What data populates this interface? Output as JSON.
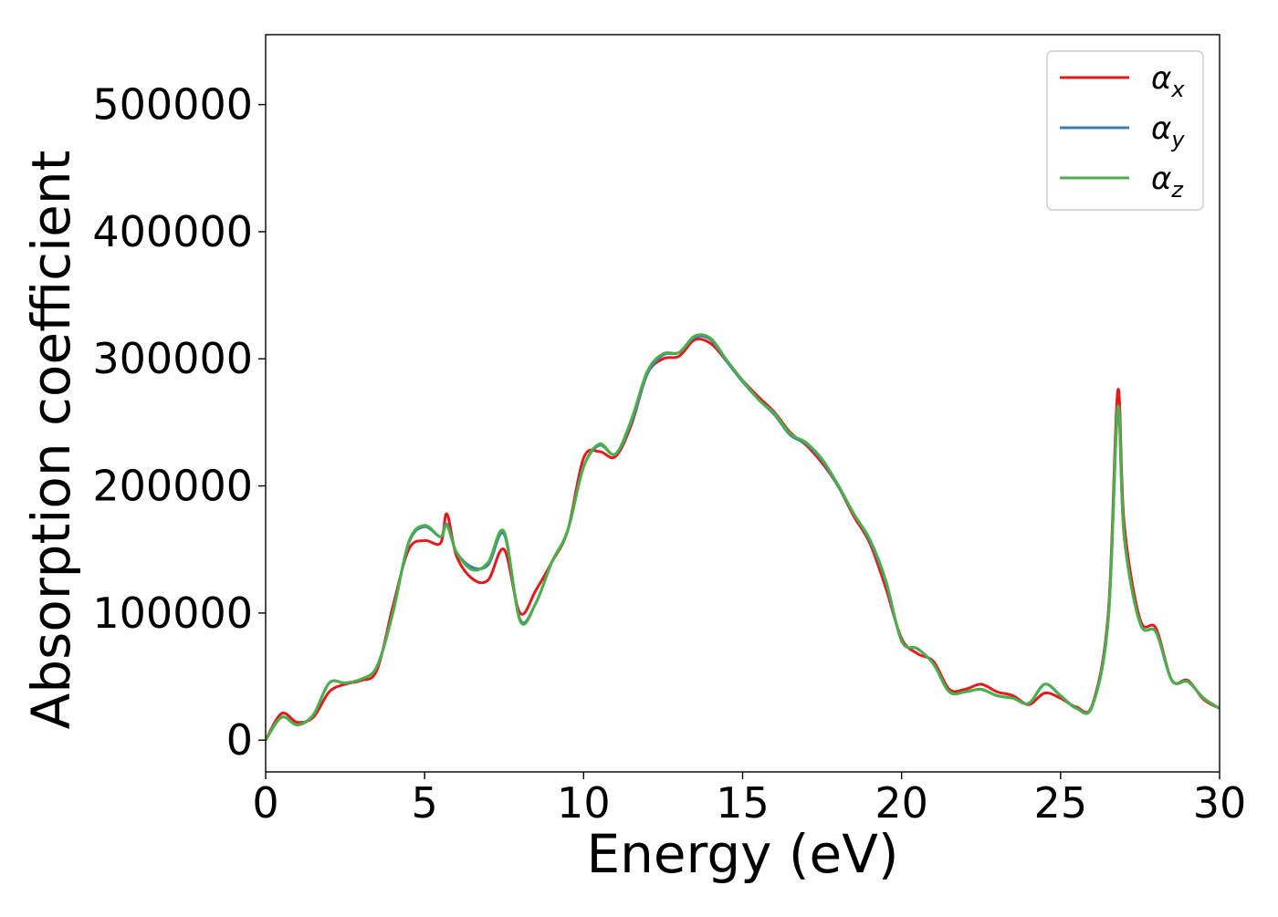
{
  "chart_data": {
    "type": "line",
    "title": "",
    "xlabel": "Energy (eV)",
    "ylabel": "Absorption coefficient",
    "xlim": [
      0,
      30
    ],
    "ylim": [
      -25000,
      555000
    ],
    "xticks": [
      0,
      5,
      10,
      15,
      20,
      25,
      30
    ],
    "xtick_labels": [
      "0",
      "5",
      "10",
      "15",
      "20",
      "25",
      "30"
    ],
    "yticks": [
      0,
      100000,
      200000,
      300000,
      400000,
      500000
    ],
    "ytick_labels": [
      "0",
      "100000",
      "200000",
      "300000",
      "400000",
      "500000"
    ],
    "grid": false,
    "legend_position": "top-right",
    "x": [
      0,
      0.5,
      1.0,
      1.5,
      2.0,
      2.5,
      3.0,
      3.5,
      4.0,
      4.5,
      5.0,
      5.5,
      5.7,
      6.0,
      6.5,
      7.0,
      7.5,
      8.0,
      8.5,
      9.0,
      9.5,
      10.0,
      10.5,
      11.0,
      11.5,
      12.0,
      12.5,
      13.0,
      13.5,
      14.0,
      14.5,
      15.0,
      15.5,
      16.0,
      16.5,
      17.0,
      17.5,
      18.0,
      18.5,
      19.0,
      19.5,
      20.0,
      20.5,
      21.0,
      21.5,
      22.0,
      22.5,
      23.0,
      23.5,
      24.0,
      24.5,
      25.0,
      25.5,
      26.0,
      26.5,
      26.8,
      27.0,
      27.5,
      28.0,
      28.5,
      29.0,
      29.5,
      30.0
    ],
    "series": [
      {
        "name": "αx",
        "label_main": "α",
        "label_sub": "x",
        "color": "#e41a1c",
        "values": [
          0,
          21000,
          14000,
          18000,
          38000,
          44000,
          47000,
          55000,
          105000,
          150000,
          157000,
          155000,
          178000,
          145000,
          127000,
          126000,
          150000,
          100000,
          118000,
          140000,
          165000,
          222000,
          227000,
          223000,
          248000,
          288000,
          300000,
          302000,
          315000,
          312000,
          298000,
          283000,
          270000,
          258000,
          242000,
          232000,
          218000,
          200000,
          176000,
          155000,
          120000,
          80000,
          68000,
          62000,
          40000,
          40000,
          44000,
          38000,
          35000,
          28000,
          37000,
          33000,
          26000,
          28000,
          100000,
          275000,
          170000,
          95000,
          88000,
          47000,
          47000,
          32000,
          25000
        ]
      },
      {
        "name": "αy",
        "label_main": "α",
        "label_sub": "y",
        "color": "#377eb8",
        "values": [
          0,
          18000,
          12000,
          20000,
          45000,
          45000,
          48000,
          58000,
          100000,
          155000,
          168000,
          160000,
          170000,
          148000,
          136000,
          138000,
          162000,
          95000,
          108000,
          140000,
          165000,
          215000,
          232000,
          225000,
          250000,
          288000,
          303000,
          305000,
          317000,
          315000,
          298000,
          282000,
          268000,
          256000,
          240000,
          233000,
          220000,
          200000,
          178000,
          157000,
          125000,
          78000,
          72000,
          60000,
          38000,
          38000,
          40000,
          35000,
          33000,
          29000,
          44000,
          35000,
          25000,
          27000,
          95000,
          260000,
          160000,
          92000,
          85000,
          47000,
          46000,
          33000,
          25000
        ]
      },
      {
        "name": "αz",
        "label_main": "α",
        "label_sub": "z",
        "color": "#4daf4a",
        "values": [
          0,
          18000,
          12000,
          20000,
          45000,
          45000,
          48000,
          58000,
          100000,
          156000,
          169000,
          160000,
          169000,
          148000,
          134000,
          140000,
          164000,
          94000,
          108000,
          140000,
          165000,
          215000,
          233000,
          225000,
          252000,
          290000,
          304000,
          305000,
          318000,
          316000,
          299000,
          283000,
          268000,
          257000,
          241000,
          234000,
          221000,
          201000,
          178000,
          158000,
          126000,
          78000,
          72000,
          60000,
          38000,
          38000,
          40000,
          35000,
          33000,
          29000,
          44000,
          35000,
          25000,
          27000,
          95000,
          262000,
          160000,
          92000,
          85000,
          47000,
          46000,
          33000,
          25000
        ]
      }
    ]
  }
}
